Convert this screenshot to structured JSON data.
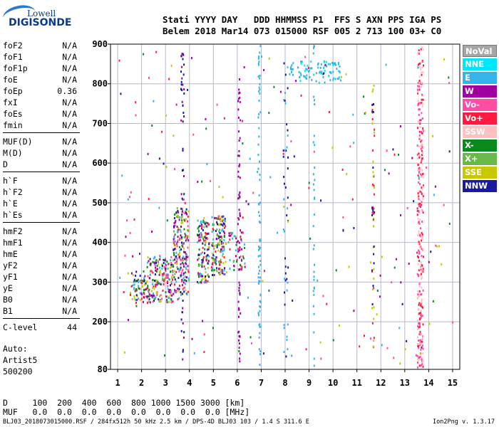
{
  "logo": {
    "top": "Lowell",
    "bottom": "DIGISONDE"
  },
  "header": {
    "line1": "Stati YYYY DAY   DDD HHMMSS P1  FFS S AXN PPS IGA PS",
    "line2": "Belem 2018 Mar14 073 015000 RSF 005 2 713 100 03+ C0"
  },
  "params": [
    {
      "name": "foF2",
      "value": "N/A"
    },
    {
      "name": "foF1",
      "value": "N/A"
    },
    {
      "name": "foF1p",
      "value": "N/A"
    },
    {
      "name": "foE",
      "value": "N/A"
    },
    {
      "name": "foEp",
      "value": "0.36"
    },
    {
      "name": "fxI",
      "value": "N/A"
    },
    {
      "name": "foEs",
      "value": "N/A"
    },
    {
      "name": "fmin",
      "value": "N/A"
    },
    {
      "name": "MUF(D)",
      "value": "N/A"
    },
    {
      "name": "M(D)",
      "value": "N/A"
    },
    {
      "name": "D",
      "value": "N/A"
    },
    {
      "name": "h`F",
      "value": "N/A"
    },
    {
      "name": "h`F2",
      "value": "N/A"
    },
    {
      "name": "h`E",
      "value": "N/A"
    },
    {
      "name": "h`Es",
      "value": "N/A"
    },
    {
      "name": "hmF2",
      "value": "N/A"
    },
    {
      "name": "hmF1",
      "value": "N/A"
    },
    {
      "name": "hmE",
      "value": "N/A"
    },
    {
      "name": "yF2",
      "value": "N/A"
    },
    {
      "name": "yF1",
      "value": "N/A"
    },
    {
      "name": "yE",
      "value": "N/A"
    },
    {
      "name": "B0",
      "value": "N/A"
    },
    {
      "name": "B1",
      "value": "N/A"
    },
    {
      "name": "C-level",
      "value": "44"
    }
  ],
  "auto": [
    "Auto:",
    "Artist5",
    "500200"
  ],
  "legend": [
    {
      "label": "NoVal",
      "color": "#a6a6a6"
    },
    {
      "label": "NNE",
      "color": "#00e6ff"
    },
    {
      "label": "E",
      "color": "#33b4ec"
    },
    {
      "label": "W",
      "color": "#a000a0"
    },
    {
      "label": "Vo-",
      "color": "#ff4da6"
    },
    {
      "label": "Vo+",
      "color": "#ff1a40"
    },
    {
      "label": "SSW",
      "color": "#ffc0c0"
    },
    {
      "label": "X-",
      "color": "#0a8a1e"
    },
    {
      "label": "X+",
      "color": "#6ab84a"
    },
    {
      "label": "SSE",
      "color": "#c8c800"
    },
    {
      "label": "NNW",
      "color": "#1a1aa0"
    }
  ],
  "bottom": {
    "line1": "D     100  200  400  600  800 1000 1500 3000 [km]",
    "line2": "MUF   0.0  0.0  0.0  0.0  0.0  0.0  0.0  0.0 [MHz]"
  },
  "footer": {
    "left": "BLJ03_2018073015000.RSF / 284fx512h 50 kHz 2.5 km / DPS-4D BLJ03 103 / 1.4 S 311.6 E",
    "right": "Ion2Png v. 1.3.17"
  },
  "chart_data": {
    "type": "scatter",
    "xlim": [
      0.7,
      15.3
    ],
    "ylim": [
      80,
      900
    ],
    "xticks": [
      1,
      2,
      3,
      4,
      5,
      6,
      7,
      8,
      9,
      10,
      11,
      12,
      13,
      14,
      15
    ],
    "yticks": [
      80,
      200,
      300,
      400,
      500,
      600,
      700,
      800,
      900
    ],
    "grid": true,
    "regions": [
      {
        "x": [
          1.5,
          2.2
        ],
        "y": [
          250,
          330
        ],
        "colors": [
          "#a000a0",
          "#1a1aa0",
          "#0a8a1e",
          "#ff1a40",
          "#c8c800",
          "#33b4ec"
        ],
        "n": 70
      },
      {
        "x": [
          2.2,
          3.3
        ],
        "y": [
          250,
          370
        ],
        "colors": [
          "#a000a0",
          "#1a1aa0",
          "#0a8a1e",
          "#ff1a40",
          "#c8c800",
          "#33b4ec",
          "#6ab84a",
          "#ff4da6"
        ],
        "n": 190
      },
      {
        "x": [
          3.3,
          3.95
        ],
        "y": [
          270,
          490
        ],
        "colors": [
          "#a000a0",
          "#1a1aa0",
          "#0a8a1e",
          "#ff1a40",
          "#c8c800",
          "#33b4ec",
          "#6ab84a",
          "#ff4da6"
        ],
        "n": 200
      },
      {
        "x": [
          4.3,
          4.8
        ],
        "y": [
          300,
          460
        ],
        "colors": [
          "#a000a0",
          "#1a1aa0",
          "#0a8a1e",
          "#ff1a40",
          "#c8c800",
          "#33b4ec",
          "#6ab84a"
        ],
        "n": 130
      },
      {
        "x": [
          4.9,
          5.5
        ],
        "y": [
          320,
          470
        ],
        "colors": [
          "#a000a0",
          "#1a1aa0",
          "#0a8a1e",
          "#ff1a40",
          "#c8c800",
          "#33b4ec",
          "#6ab84a"
        ],
        "n": 150
      },
      {
        "x": [
          5.6,
          6.3
        ],
        "y": [
          330,
          430
        ],
        "colors": [
          "#a000a0",
          "#0a8a1e",
          "#ff1a40",
          "#33b4ec",
          "#6ab84a"
        ],
        "n": 50
      },
      {
        "x": [
          8.0,
          10.3
        ],
        "y": [
          805,
          860
        ],
        "colors": [
          "#33b4ec",
          "#33b4ec",
          "#00e6ff"
        ],
        "n": 90
      },
      {
        "x": [
          3.6,
          3.75
        ],
        "y": [
          90,
          900
        ],
        "colors": [
          "#a000a0",
          "#1a1aa0"
        ],
        "n": 60
      },
      {
        "x": [
          6.0,
          6.1
        ],
        "y": [
          100,
          820
        ],
        "colors": [
          "#a000a0"
        ],
        "n": 70
      },
      {
        "x": [
          6.85,
          6.95
        ],
        "y": [
          90,
          900
        ],
        "colors": [
          "#33b4ec"
        ],
        "n": 75
      },
      {
        "x": [
          7.9,
          8.1
        ],
        "y": [
          90,
          900
        ],
        "colors": [
          "#33b4ec",
          "#1a1aa0"
        ],
        "n": 45
      },
      {
        "x": [
          9.15,
          9.2
        ],
        "y": [
          90,
          900
        ],
        "colors": [
          "#33b4ec"
        ],
        "n": 35
      },
      {
        "x": [
          11.6,
          11.7
        ],
        "y": [
          120,
          800
        ],
        "colors": [
          "#c8c800",
          "#1a1aa0",
          "#ff1a40"
        ],
        "n": 55
      },
      {
        "x": [
          13.5,
          13.75
        ],
        "y": [
          85,
          900
        ],
        "colors": [
          "#ffc0c0",
          "#ff4da6",
          "#ff1a40"
        ],
        "n": 300
      },
      {
        "x": [
          1.0,
          15.0
        ],
        "y": [
          90,
          900
        ],
        "colors": [
          "#a000a0",
          "#1a1aa0",
          "#33b4ec",
          "#ff1a40",
          "#0a8a1e",
          "#c8c800",
          "#ff4da6"
        ],
        "n": 220
      }
    ]
  }
}
